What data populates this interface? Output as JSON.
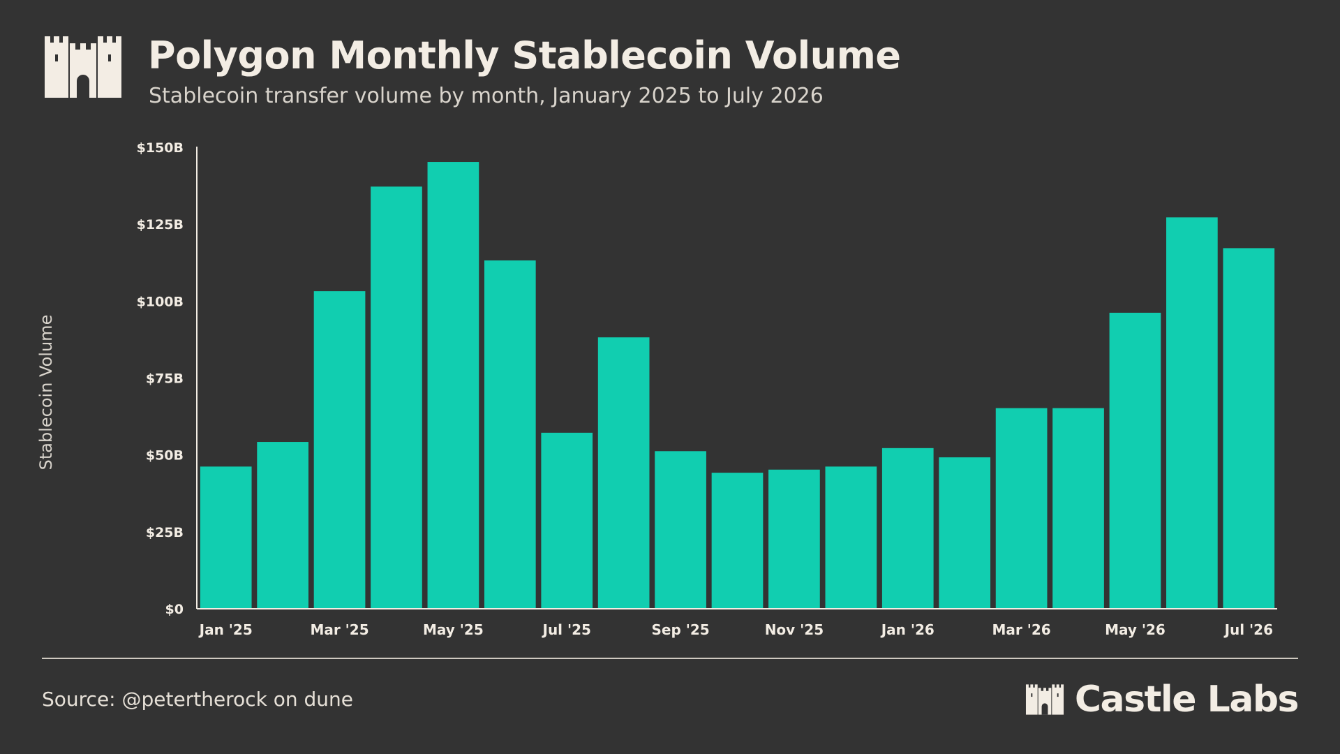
{
  "header": {
    "title": "Polygon Monthly Stablecoin Volume",
    "subtitle": "Stablecoin transfer volume by month, January 2025 to July 2026"
  },
  "footer": {
    "source": "Source: @petertherock on dune",
    "brand": "Castle Labs",
    "brand_icon": "castle-icon"
  },
  "colors": {
    "background": "#333333",
    "bar": "#11ceb0",
    "text": "#f3ede4",
    "axis": "#f3ede4"
  },
  "chart_data": {
    "type": "bar",
    "title": "",
    "xlabel": "",
    "ylabel": "Stablecoin Volume",
    "ylim": [
      0,
      150
    ],
    "yticks": [
      0,
      25,
      50,
      75,
      100,
      125,
      150
    ],
    "ytick_labels": [
      "$0",
      "$25B",
      "$50B",
      "$75B",
      "$100B",
      "$125B",
      "$150B"
    ],
    "categories": [
      "Jan '25",
      "Feb '25",
      "Mar '25",
      "Apr '25",
      "May '25",
      "Jun '25",
      "Jul '25",
      "Aug '25",
      "Sep '25",
      "Oct '25",
      "Nov '25",
      "Dec '25",
      "Jan '26",
      "Feb '26",
      "Mar '26",
      "Apr '26",
      "May '26",
      "Jun '26",
      "Jul '26"
    ],
    "xtick_labels": [
      "Jan '25",
      "",
      "Mar '25",
      "",
      "May '25",
      "",
      "Jul '25",
      "",
      "Sep '25",
      "",
      "Nov '25",
      "",
      "Jan '26",
      "",
      "Mar '26",
      "",
      "May '26",
      "",
      "Jul '26"
    ],
    "values": [
      46,
      54,
      103,
      137,
      145,
      113,
      57,
      88,
      51,
      44,
      45,
      46,
      52,
      49,
      65,
      65,
      96,
      127,
      117
    ],
    "grid": false
  }
}
